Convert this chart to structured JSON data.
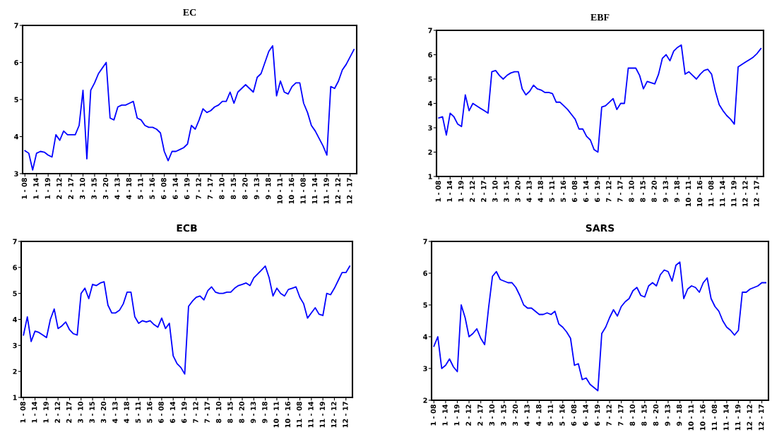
{
  "chart_data": [
    {
      "type": "line",
      "title": "EC",
      "categories": [
        "1 - 08",
        null,
        null,
        "1 - 14",
        null,
        null,
        "1 - 19",
        null,
        null,
        "2 - 12",
        null,
        null,
        "2 - 17",
        null,
        null,
        "3 - 10",
        null,
        null,
        "3 - 15",
        null,
        null,
        "3 - 20",
        null,
        null,
        "4 - 13",
        null,
        null,
        "4 - 18",
        null,
        null,
        "5 - 11",
        null,
        null,
        "5 - 16",
        null,
        null,
        "6 - 08",
        null,
        null,
        "6 - 14",
        null,
        null,
        "6 - 19",
        null,
        null,
        "7 - 12",
        null,
        null,
        "7 - 17",
        null,
        null,
        "8 - 10",
        null,
        null,
        "8 - 15",
        null,
        null,
        "8 - 20",
        null,
        null,
        "9 - 13",
        null,
        null,
        "9 - 18",
        null,
        null,
        "10 - 11",
        null,
        null,
        "10 - 16",
        null,
        null,
        "11 - 08",
        null,
        null,
        "11 - 14",
        null,
        null,
        "11 - 19",
        null,
        null,
        "12 - 12",
        null,
        null,
        "12 - 17",
        null
      ],
      "series": [
        {
          "color": "#0000ff",
          "values": [
            3.62,
            3.55,
            3.1,
            3.55,
            3.6,
            3.58,
            3.5,
            3.45,
            4.05,
            3.9,
            4.15,
            4.05,
            4.05,
            4.05,
            4.3,
            5.25,
            3.4,
            5.25,
            5.45,
            5.7,
            5.85,
            6.0,
            4.5,
            4.45,
            4.8,
            4.85,
            4.85,
            4.9,
            4.95,
            4.5,
            4.45,
            4.3,
            4.25,
            4.25,
            4.2,
            4.1,
            3.6,
            3.35,
            3.6,
            3.6,
            3.65,
            3.7,
            3.8,
            4.3,
            4.2,
            4.45,
            4.75,
            4.65,
            4.7,
            4.8,
            4.85,
            4.95,
            4.95,
            5.2,
            4.9,
            5.2,
            5.3,
            5.4,
            5.3,
            5.2,
            5.6,
            5.7,
            6.0,
            6.3,
            6.45,
            5.1,
            5.5,
            5.2,
            5.15,
            5.35,
            5.45,
            5.45,
            4.9,
            4.65,
            4.3,
            4.15,
            3.95,
            3.75,
            3.5,
            5.35,
            5.3,
            5.5,
            5.8,
            5.95,
            6.15,
            6.35
          ]
        }
      ],
      "ylim": [
        3,
        7
      ],
      "yticks": [
        3,
        4,
        5,
        6,
        7
      ],
      "grid": false
    },
    {
      "type": "line",
      "title": "EBF",
      "categories": [
        "1 - 08",
        null,
        null,
        "1 - 14",
        null,
        null,
        "1 - 19",
        null,
        null,
        "2 - 12",
        null,
        null,
        "2 - 17",
        null,
        null,
        "3 - 10",
        null,
        null,
        "3 - 15",
        null,
        null,
        "3 - 20",
        null,
        null,
        "4 - 13",
        null,
        null,
        "4 - 18",
        null,
        null,
        "5 - 11",
        null,
        null,
        "5 - 16",
        null,
        null,
        "6 - 08",
        null,
        null,
        "6 - 14",
        null,
        null,
        "6 - 19",
        null,
        null,
        "7 - 12",
        null,
        null,
        "7 - 17",
        null,
        null,
        "8 - 10",
        null,
        null,
        "8 - 15",
        null,
        null,
        "8 - 20",
        null,
        null,
        "9 - 13",
        null,
        null,
        "9 - 18",
        null,
        null,
        "10 - 11",
        null,
        null,
        "10 - 16",
        null,
        null,
        "11 - 08",
        null,
        null,
        "11 - 14",
        null,
        null,
        "11 - 19",
        null,
        null,
        "12 - 12",
        null,
        null,
        "12 - 17",
        null
      ],
      "series": [
        {
          "color": "#0000ff",
          "values": [
            3.4,
            3.45,
            2.7,
            3.6,
            3.45,
            3.15,
            3.05,
            4.35,
            3.7,
            4.0,
            3.9,
            3.8,
            3.7,
            3.6,
            5.3,
            5.35,
            5.15,
            5.0,
            5.15,
            5.25,
            5.3,
            5.3,
            4.6,
            4.35,
            4.5,
            4.75,
            4.6,
            4.55,
            4.45,
            4.45,
            4.4,
            4.05,
            4.05,
            3.9,
            3.75,
            3.55,
            3.35,
            2.95,
            2.95,
            2.65,
            2.5,
            2.1,
            2.0,
            3.85,
            3.9,
            4.05,
            4.2,
            3.75,
            4.0,
            4.0,
            5.45,
            5.45,
            5.45,
            5.15,
            4.6,
            4.9,
            4.85,
            4.8,
            5.2,
            5.85,
            6.0,
            5.75,
            6.15,
            6.3,
            6.4,
            5.2,
            5.3,
            5.15,
            5.0,
            5.2,
            5.35,
            5.4,
            5.2,
            4.5,
            3.95,
            3.7,
            3.5,
            3.35,
            3.15,
            5.5,
            5.6,
            5.7,
            5.8,
            5.9,
            6.05,
            6.25
          ]
        }
      ],
      "ylim": [
        1,
        7
      ],
      "yticks": [
        1,
        2,
        3,
        4,
        5,
        6,
        7
      ],
      "grid": false
    },
    {
      "type": "line",
      "title": "ECB",
      "categories": [
        "1 - 08",
        null,
        null,
        "1 - 14",
        null,
        null,
        "1 - 19",
        null,
        null,
        "2 - 12",
        null,
        null,
        "2 - 17",
        null,
        null,
        "3 - 10",
        null,
        null,
        "3 - 15",
        null,
        null,
        "3 - 20",
        null,
        null,
        "4 - 13",
        null,
        null,
        "4 - 18",
        null,
        null,
        "5 - 11",
        null,
        null,
        "5 - 16",
        null,
        null,
        "6 - 08",
        null,
        null,
        "6 - 14",
        null,
        null,
        "6 - 19",
        null,
        null,
        "7 - 12",
        null,
        null,
        "7 - 17",
        null,
        null,
        "8 - 10",
        null,
        null,
        "8 - 15",
        null,
        null,
        "8 - 20",
        null,
        null,
        "9 - 13",
        null,
        null,
        "9 - 18",
        null,
        null,
        "10 - 11",
        null,
        null,
        "10 - 16",
        null,
        null,
        "11 - 08",
        null,
        null,
        "11 - 14",
        null,
        null,
        "11 - 19",
        null,
        null,
        "12 - 12",
        null,
        null,
        "12 - 17",
        null
      ],
      "series": [
        {
          "color": "#0000ff",
          "values": [
            3.4,
            4.1,
            3.15,
            3.55,
            3.5,
            3.4,
            3.3,
            4.0,
            4.4,
            3.65,
            3.75,
            3.9,
            3.6,
            3.45,
            3.4,
            5.0,
            5.2,
            4.8,
            5.35,
            5.3,
            5.4,
            5.45,
            4.55,
            4.25,
            4.25,
            4.35,
            4.6,
            5.05,
            5.05,
            4.1,
            3.85,
            3.95,
            3.9,
            3.95,
            3.8,
            3.7,
            4.05,
            3.65,
            3.85,
            2.6,
            2.3,
            2.15,
            1.9,
            4.5,
            4.7,
            4.85,
            4.9,
            4.75,
            5.1,
            5.25,
            5.05,
            5.0,
            5.0,
            5.05,
            5.05,
            5.2,
            5.3,
            5.35,
            5.4,
            5.3,
            5.6,
            5.75,
            5.9,
            6.05,
            5.6,
            4.9,
            5.2,
            5.0,
            4.9,
            5.15,
            5.2,
            5.25,
            4.85,
            4.6,
            4.05,
            4.25,
            4.45,
            4.2,
            4.15,
            5.0,
            4.95,
            5.2,
            5.5,
            5.8,
            5.8,
            6.05
          ]
        }
      ],
      "ylim": [
        1,
        7
      ],
      "yticks": [
        1,
        2,
        3,
        4,
        5,
        6,
        7
      ],
      "grid": false
    },
    {
      "type": "line",
      "title": "SARS",
      "categories": [
        "1 - 08",
        null,
        null,
        "1 - 14",
        null,
        null,
        "1 - 19",
        null,
        null,
        "2 - 12",
        null,
        null,
        "2 - 17",
        null,
        null,
        "3 - 10",
        null,
        null,
        "3 - 15",
        null,
        null,
        "3 - 20",
        null,
        null,
        "4 - 13",
        null,
        null,
        "4 - 18",
        null,
        null,
        "5 - 11",
        null,
        null,
        "5 - 16",
        null,
        null,
        "6 - 08",
        null,
        null,
        "6 - 14",
        null,
        null,
        "6 - 19",
        null,
        null,
        "7 - 12",
        null,
        null,
        "7 - 17",
        null,
        null,
        "8 - 10",
        null,
        null,
        "8 - 15",
        null,
        null,
        "8 - 20",
        null,
        null,
        "9 - 13",
        null,
        null,
        "9 - 18",
        null,
        null,
        "10 - 11",
        null,
        null,
        "10 - 16",
        null,
        null,
        "11 - 08",
        null,
        null,
        "11 - 14",
        null,
        null,
        "11 - 19",
        null,
        null,
        "12 - 12",
        null,
        null,
        "12 - 17",
        null
      ],
      "series": [
        {
          "color": "#0000ff",
          "values": [
            3.7,
            4.0,
            3.0,
            3.1,
            3.3,
            3.05,
            2.9,
            5.0,
            4.6,
            4.0,
            4.1,
            4.25,
            3.95,
            3.75,
            4.9,
            5.9,
            6.05,
            5.8,
            5.75,
            5.7,
            5.7,
            5.55,
            5.3,
            5.0,
            4.9,
            4.9,
            4.8,
            4.7,
            4.7,
            4.75,
            4.7,
            4.8,
            4.4,
            4.3,
            4.15,
            3.95,
            3.1,
            3.15,
            2.65,
            2.7,
            2.5,
            2.4,
            2.3,
            4.1,
            4.3,
            4.6,
            4.85,
            4.65,
            4.95,
            5.1,
            5.2,
            5.45,
            5.55,
            5.3,
            5.25,
            5.6,
            5.7,
            5.6,
            5.95,
            6.1,
            6.05,
            5.75,
            6.25,
            6.35,
            5.2,
            5.5,
            5.6,
            5.55,
            5.4,
            5.7,
            5.85,
            5.2,
            4.95,
            4.8,
            4.5,
            4.3,
            4.2,
            4.05,
            4.2,
            5.4,
            5.4,
            5.5,
            5.55,
            5.6,
            5.7,
            5.7
          ]
        }
      ],
      "ylim": [
        2,
        7
      ],
      "yticks": [
        2,
        3,
        4,
        5,
        6,
        7
      ],
      "grid": false
    }
  ]
}
